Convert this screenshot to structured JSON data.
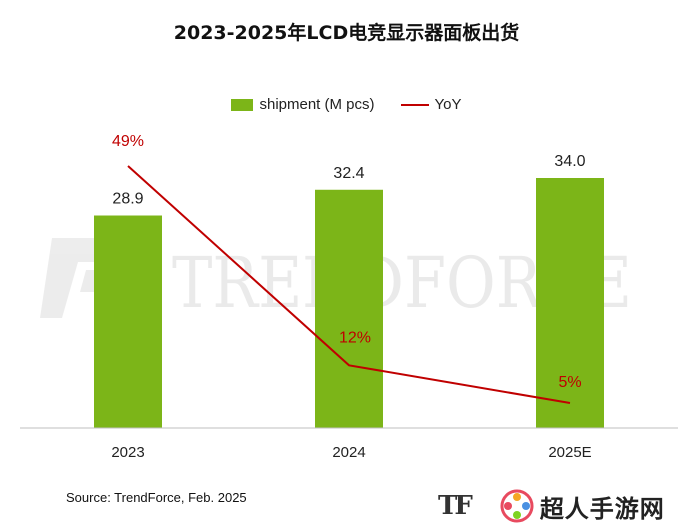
{
  "chart_data": {
    "type": "bar",
    "title": "2023-2025年LCD电竞显示器面板出货",
    "categories": [
      "2023",
      "2024",
      "2025E"
    ],
    "series": [
      {
        "name": "shipment (M pcs)",
        "type": "bar",
        "values": [
          28.9,
          32.4,
          34.0
        ],
        "labels": [
          "28.9",
          "32.4",
          "34.0"
        ],
        "color": "#7cb518"
      },
      {
        "name": "YoY",
        "type": "line",
        "values": [
          49,
          12,
          5
        ],
        "labels": [
          "49%",
          "12%",
          "5%"
        ],
        "color": "#c00000"
      }
    ],
    "grid": false,
    "legend_position": "top"
  },
  "source": "Source: TrendForce, Feb. 2025",
  "watermark": {
    "brand": "TRENDFORCE",
    "site": "超人手游网",
    "mark": "TF"
  }
}
